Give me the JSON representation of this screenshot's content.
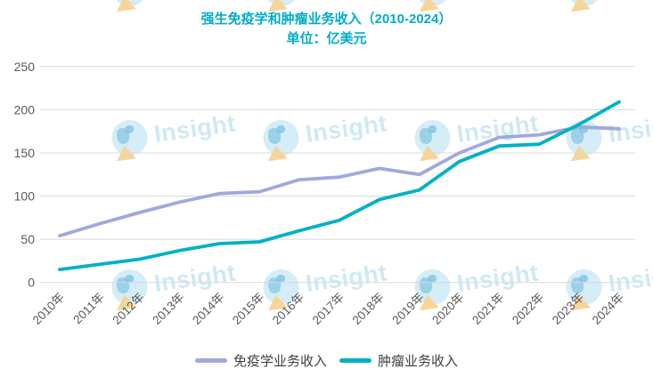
{
  "title": {
    "line1": "强生免疫学和肿瘤业务收入（2010-2024）",
    "line2": "单位：亿美元"
  },
  "watermark": {
    "text": "Insight"
  },
  "legend": {
    "items": [
      {
        "label": "免疫学业务收入",
        "color": "#9fa9dd"
      },
      {
        "label": "肿瘤业务收入",
        "color": "#00b1c4"
      }
    ]
  },
  "colors": {
    "title": "#00adc8",
    "grid": "#d9d9d9",
    "tick_text": "#595959",
    "immunology_line": "#9fa9dd",
    "oncology_line": "#00b1c4",
    "watermark_blue": "#c7e6f2",
    "watermark_yellow": "#f7cd84"
  },
  "chart_data": {
    "type": "line",
    "title": "强生免疫学和肿瘤业务收入（2010-2024）",
    "subtitle": "单位：亿美元",
    "categories": [
      "2010年",
      "2011年",
      "2012年",
      "2013年",
      "2014年",
      "2015年",
      "2016年",
      "2017年",
      "2018年",
      "2019年",
      "2020年",
      "2021年",
      "2022年",
      "2023年",
      "2024年"
    ],
    "series": [
      {
        "name": "免疫学业务收入",
        "color": "#9fa9dd",
        "values": [
          54,
          68,
          81,
          93,
          103,
          105,
          119,
          122,
          132,
          125,
          150,
          168,
          171,
          180,
          178
        ]
      },
      {
        "name": "肿瘤业务收入",
        "color": "#00b1c4",
        "values": [
          15,
          21,
          27,
          37,
          45,
          47,
          60,
          72,
          96,
          107,
          140,
          158,
          160,
          183,
          209
        ]
      }
    ],
    "xlabel": "",
    "ylabel": "",
    "ylim": [
      0,
      250
    ],
    "yticks": [
      0,
      50,
      100,
      150,
      200,
      250
    ],
    "grid": true,
    "legend_position": "bottom"
  }
}
